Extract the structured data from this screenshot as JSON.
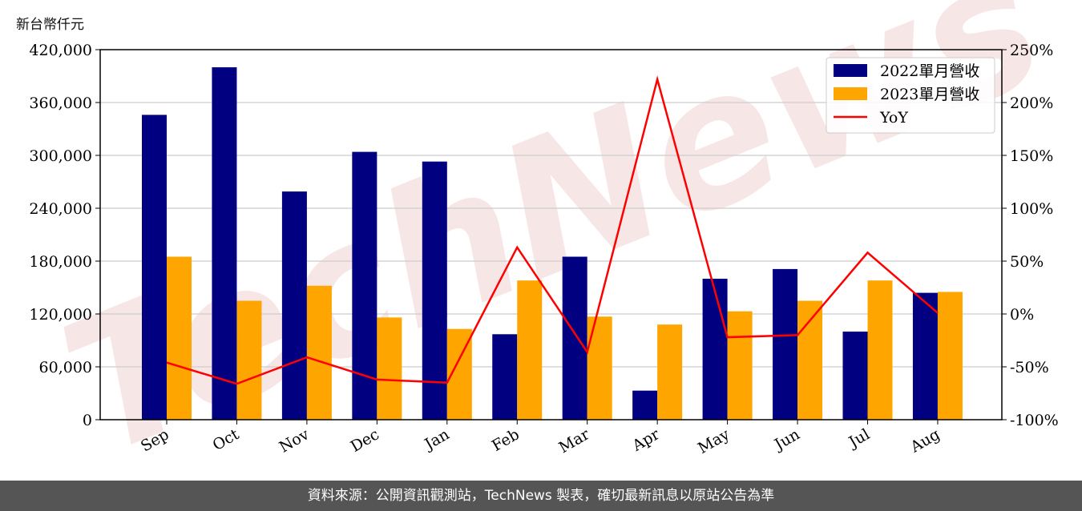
{
  "chart_data": {
    "type": "bar+line",
    "ylabel": "新台幣仟元",
    "categories": [
      "Sep",
      "Oct",
      "Nov",
      "Dec",
      "Jan",
      "Feb",
      "Mar",
      "Apr",
      "May",
      "Jun",
      "Jul",
      "Aug"
    ],
    "series": [
      {
        "name": "2022單月營收",
        "type": "bar",
        "color": "#000080",
        "values": [
          346000,
          400000,
          259000,
          304000,
          293000,
          97000,
          185000,
          33000,
          160000,
          171000,
          100000,
          144000
        ]
      },
      {
        "name": "2023單月營收",
        "type": "bar",
        "color": "#FFA500",
        "values": [
          185000,
          135000,
          152000,
          116000,
          103000,
          158000,
          117000,
          108000,
          123000,
          135000,
          158000,
          145000
        ]
      },
      {
        "name": "YoY",
        "type": "line",
        "axis": "right",
        "color": "#FF0000",
        "values": [
          -46,
          -66,
          -41,
          -62,
          -65,
          63,
          -36,
          222,
          -22,
          -20,
          58,
          1
        ]
      }
    ],
    "ylim": [
      0,
      420000
    ],
    "yticks": [
      "0",
      "60,000",
      "120,000",
      "180,000",
      "240,000",
      "300,000",
      "360,000",
      "420,000"
    ],
    "y2lim": [
      -100,
      250
    ],
    "y2ticks": [
      "-100%",
      "-50%",
      "0%",
      "50%",
      "100%",
      "150%",
      "200%",
      "250%"
    ],
    "grid": "horizontal",
    "legend_position": "top-right"
  },
  "watermark": "TechNews",
  "footer": "資料來源：公開資訊觀測站，TechNews 製表，確切最新訊息以原站公告為準"
}
